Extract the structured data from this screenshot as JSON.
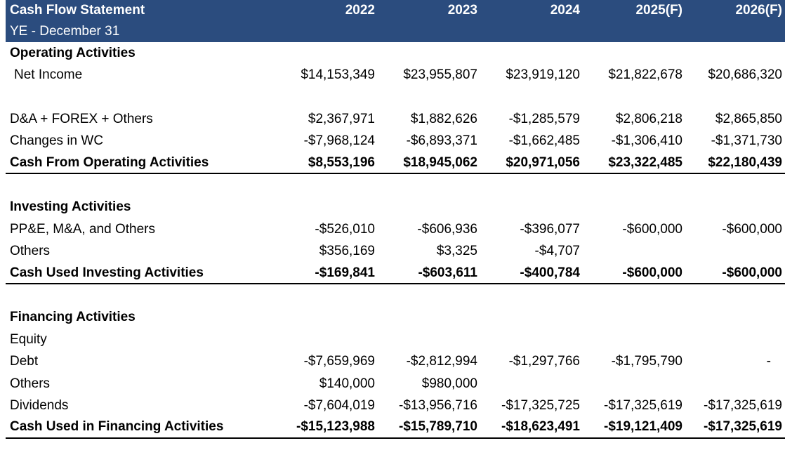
{
  "header": {
    "title": "Cash Flow Statement",
    "subtitle": "YE - December 31",
    "years": [
      "2022",
      "2023",
      "2024",
      "2025(F)",
      "2026(F)"
    ]
  },
  "operating": {
    "heading": "Operating Activities",
    "net_income": {
      "label": "Net Income",
      "values": [
        "$14,153,349",
        "$23,955,807",
        "$23,919,120",
        "$21,822,678",
        "$20,686,320"
      ]
    },
    "da": {
      "label": "D&A + FOREX + Others",
      "values": [
        "$2,367,971",
        "$1,882,626",
        "-$1,285,579",
        "$2,806,218",
        "$2,865,850"
      ]
    },
    "wc": {
      "label": "Changes in WC",
      "values": [
        "-$7,968,124",
        "-$6,893,371",
        "-$1,662,485",
        "-$1,306,410",
        "-$1,371,730"
      ]
    },
    "total": {
      "label": "Cash From Operating Activities",
      "values": [
        "$8,553,196",
        "$18,945,062",
        "$20,971,056",
        "$23,322,485",
        "$22,180,439"
      ]
    }
  },
  "investing": {
    "heading": "Investing Activities",
    "ppe": {
      "label": "PP&E, M&A, and Others",
      "values": [
        "-$526,010",
        "-$606,936",
        "-$396,077",
        "-$600,000",
        "-$600,000"
      ]
    },
    "others": {
      "label": "Others",
      "values": [
        "$356,169",
        "$3,325",
        "-$4,707",
        "",
        ""
      ]
    },
    "total": {
      "label": "Cash Used Investing Activities",
      "values": [
        "-$169,841",
        "-$603,611",
        "-$400,784",
        "-$600,000",
        "-$600,000"
      ]
    }
  },
  "financing": {
    "heading": "Financing Activities",
    "equity": {
      "label": "Equity",
      "values": [
        "",
        "",
        "",
        "",
        ""
      ]
    },
    "debt": {
      "label": "Debt",
      "values": [
        "-$7,659,969",
        "-$2,812,994",
        "-$1,297,766",
        "-$1,795,790",
        "-"
      ]
    },
    "others": {
      "label": "Others",
      "values": [
        "$140,000",
        "$980,000",
        "",
        "",
        ""
      ]
    },
    "dividends": {
      "label": "Dividends",
      "values": [
        "-$7,604,019",
        "-$13,956,716",
        "-$17,325,725",
        "-$17,325,619",
        "-$17,325,619"
      ]
    },
    "total": {
      "label": "Cash Used in Financing Activities",
      "values": [
        "-$15,123,988",
        "-$15,789,710",
        "-$18,623,491",
        "-$19,121,409",
        "-$17,325,619"
      ]
    }
  }
}
